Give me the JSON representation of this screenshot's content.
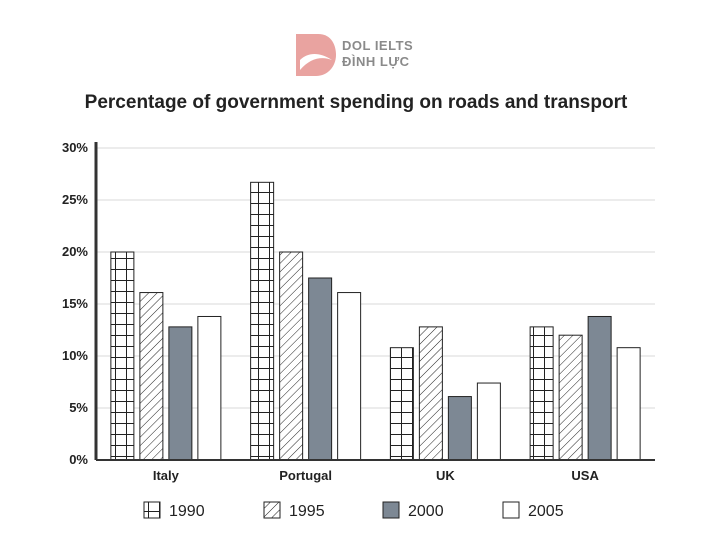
{
  "brand": {
    "line1": "DOL IELTS",
    "line2": "ĐÌNH LỰC",
    "accent": "#e9a3a0"
  },
  "chart_data": {
    "type": "bar",
    "title": "Percentage of government spending on roads and transport",
    "categories": [
      "Italy",
      "Portugal",
      "UK",
      "USA"
    ],
    "series": [
      {
        "name": "1990",
        "values": [
          20,
          26.7,
          10.8,
          12.8
        ],
        "fill": "grid"
      },
      {
        "name": "1995",
        "values": [
          16.1,
          20,
          12.8,
          12
        ],
        "fill": "hatch"
      },
      {
        "name": "2000",
        "values": [
          12.8,
          17.5,
          6.1,
          13.8
        ],
        "fill": "#7d8894"
      },
      {
        "name": "2005",
        "values": [
          13.8,
          16.1,
          7.4,
          10.8
        ],
        "fill": "#ffffff"
      }
    ],
    "yticks": [
      "0%",
      "5%",
      "10%",
      "15%",
      "20%",
      "25%",
      "30%"
    ],
    "ylim": [
      0,
      30
    ],
    "grid": true,
    "legend": "bottom",
    "xlabel": "",
    "ylabel": ""
  }
}
